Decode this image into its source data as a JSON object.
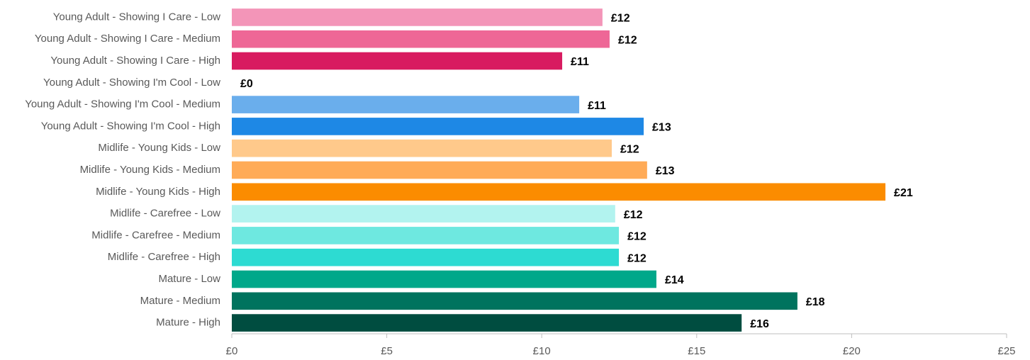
{
  "chart_data": {
    "type": "barh",
    "categories": [
      "Young Adult - Showing I Care - Low",
      "Young Adult - Showing I Care - Medium",
      "Young Adult - Showing I Care - High",
      "Young Adult - Showing I'm Cool - Low",
      "Young Adult - Showing I'm Cool - Medium",
      "Young Adult - Showing I'm Cool - High",
      "Midlife - Young Kids - Low",
      "Midlife - Young Kids - Medium",
      "Midlife - Young Kids - High",
      "Midlife - Carefree - Low",
      "Midlife - Carefree - Medium",
      "Midlife - Carefree - High",
      "Mature - Low",
      "Mature - Medium",
      "Mature - High"
    ],
    "values": [
      11.96,
      12.19,
      10.66,
      0,
      11.21,
      13.29,
      12.26,
      13.4,
      21.09,
      12.37,
      12.49,
      12.49,
      13.7,
      18.25,
      16.45
    ],
    "value_labels": [
      "£12",
      "£12",
      "£11",
      "£0",
      "£11",
      "£13",
      "£12",
      "£13",
      "£21",
      "£12",
      "£12",
      "£12",
      "£14",
      "£18",
      "£16"
    ],
    "colors": [
      "#f395b8",
      "#ee6796",
      "#d81b60",
      "#90caf9",
      "#6aaeec",
      "#1e88e5",
      "#ffc98b",
      "#ffab57",
      "#fb8c00",
      "#b2f3ef",
      "#6ee8e0",
      "#2ddbd2",
      "#00a88a",
      "#00735e",
      "#004d40"
    ],
    "xlim": [
      0,
      25
    ],
    "xticks": [
      {
        "value": 0,
        "label": "£0"
      },
      {
        "value": 5,
        "label": "£5"
      },
      {
        "value": 10,
        "label": "£10"
      },
      {
        "value": 15,
        "label": "£15"
      },
      {
        "value": 20,
        "label": "£20"
      },
      {
        "value": 25,
        "label": "£25"
      }
    ],
    "grid": false
  }
}
